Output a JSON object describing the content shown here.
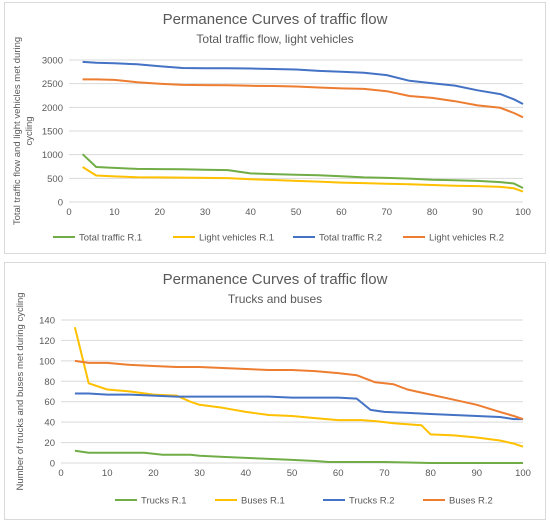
{
  "chart_data": [
    {
      "type": "line",
      "title": "Permanence Curves of traffic flow",
      "subtitle": "Total traffic flow, light vehicles",
      "xlabel": "",
      "ylabel_lines": [
        "Total traffic flow and light vehicles met during",
        "cycling"
      ],
      "xlim": [
        0,
        100
      ],
      "ylim": [
        0,
        3000
      ],
      "x_ticks": [
        0,
        10,
        20,
        30,
        40,
        50,
        60,
        70,
        80,
        90,
        100
      ],
      "y_ticks": [
        0,
        500,
        1000,
        1500,
        2000,
        2500,
        3000
      ],
      "grid": true,
      "legend_position": "bottom",
      "series": [
        {
          "name": "Total traffic R.1",
          "color": "#70ad47",
          "points": [
            [
              3,
              1010
            ],
            [
              6,
              740
            ],
            [
              10,
              720
            ],
            [
              15,
              700
            ],
            [
              20,
              695
            ],
            [
              25,
              690
            ],
            [
              30,
              680
            ],
            [
              35,
              675
            ],
            [
              40,
              605
            ],
            [
              45,
              590
            ],
            [
              50,
              575
            ],
            [
              55,
              565
            ],
            [
              60,
              545
            ],
            [
              65,
              520
            ],
            [
              70,
              510
            ],
            [
              75,
              495
            ],
            [
              80,
              470
            ],
            [
              85,
              460
            ],
            [
              90,
              445
            ],
            [
              95,
              420
            ],
            [
              98,
              390
            ],
            [
              100,
              295
            ]
          ]
        },
        {
          "name": "Light vehicles R.1",
          "color": "#ffc000",
          "points": [
            [
              3,
              740
            ],
            [
              6,
              560
            ],
            [
              10,
              540
            ],
            [
              15,
              525
            ],
            [
              20,
              520
            ],
            [
              25,
              515
            ],
            [
              30,
              510
            ],
            [
              35,
              505
            ],
            [
              40,
              480
            ],
            [
              45,
              465
            ],
            [
              50,
              445
            ],
            [
              55,
              430
            ],
            [
              60,
              410
            ],
            [
              65,
              400
            ],
            [
              70,
              385
            ],
            [
              75,
              375
            ],
            [
              80,
              360
            ],
            [
              85,
              345
            ],
            [
              90,
              335
            ],
            [
              95,
              320
            ],
            [
              98,
              290
            ],
            [
              100,
              220
            ]
          ]
        },
        {
          "name": "Total traffic R.2",
          "color": "#4472c4",
          "points": [
            [
              3,
              2960
            ],
            [
              6,
              2940
            ],
            [
              10,
              2930
            ],
            [
              15,
              2910
            ],
            [
              20,
              2870
            ],
            [
              25,
              2830
            ],
            [
              30,
              2825
            ],
            [
              35,
              2825
            ],
            [
              40,
              2820
            ],
            [
              45,
              2810
            ],
            [
              50,
              2800
            ],
            [
              55,
              2770
            ],
            [
              60,
              2750
            ],
            [
              65,
              2730
            ],
            [
              70,
              2680
            ],
            [
              75,
              2560
            ],
            [
              80,
              2510
            ],
            [
              85,
              2460
            ],
            [
              90,
              2360
            ],
            [
              95,
              2280
            ],
            [
              98,
              2170
            ],
            [
              100,
              2070
            ]
          ]
        },
        {
          "name": "Light vehicles R.2",
          "color": "#ed7d31",
          "points": [
            [
              3,
              2590
            ],
            [
              6,
              2590
            ],
            [
              10,
              2580
            ],
            [
              15,
              2530
            ],
            [
              20,
              2500
            ],
            [
              25,
              2475
            ],
            [
              30,
              2470
            ],
            [
              35,
              2465
            ],
            [
              40,
              2455
            ],
            [
              45,
              2450
            ],
            [
              50,
              2440
            ],
            [
              55,
              2420
            ],
            [
              60,
              2400
            ],
            [
              65,
              2390
            ],
            [
              70,
              2340
            ],
            [
              75,
              2240
            ],
            [
              80,
              2200
            ],
            [
              85,
              2130
            ],
            [
              90,
              2040
            ],
            [
              95,
              1990
            ],
            [
              98,
              1880
            ],
            [
              100,
              1790
            ]
          ]
        }
      ]
    },
    {
      "type": "line",
      "title": "Permanence Curves of traffic flow",
      "subtitle": "Trucks and buses",
      "xlabel": "",
      "ylabel_lines": [
        "Number of trucks and buses met during cycling"
      ],
      "xlim": [
        0,
        100
      ],
      "ylim": [
        0,
        140
      ],
      "x_ticks": [
        0,
        10,
        20,
        30,
        40,
        50,
        60,
        70,
        80,
        90,
        100
      ],
      "y_ticks": [
        0,
        20,
        40,
        60,
        80,
        100,
        120,
        140
      ],
      "grid": true,
      "legend_position": "bottom",
      "series": [
        {
          "name": "Trucks R.1",
          "color": "#70ad47",
          "points": [
            [
              3,
              12
            ],
            [
              6,
              10
            ],
            [
              10,
              10
            ],
            [
              15,
              10
            ],
            [
              18,
              10
            ],
            [
              22,
              8
            ],
            [
              25,
              8
            ],
            [
              28,
              8
            ],
            [
              30,
              7
            ],
            [
              35,
              6
            ],
            [
              40,
              5
            ],
            [
              45,
              4
            ],
            [
              50,
              3
            ],
            [
              55,
              2
            ],
            [
              58,
              1
            ],
            [
              62,
              1
            ],
            [
              65,
              1
            ],
            [
              70,
              1
            ],
            [
              75,
              0.5
            ],
            [
              80,
              0
            ],
            [
              85,
              0
            ],
            [
              90,
              0
            ],
            [
              95,
              0
            ],
            [
              100,
              0
            ]
          ]
        },
        {
          "name": "Buses R.1",
          "color": "#ffc000",
          "points": [
            [
              3,
              133
            ],
            [
              6,
              78
            ],
            [
              10,
              72
            ],
            [
              15,
              70
            ],
            [
              20,
              67
            ],
            [
              25,
              66
            ],
            [
              28,
              60
            ],
            [
              30,
              57
            ],
            [
              35,
              54
            ],
            [
              40,
              50
            ],
            [
              45,
              47
            ],
            [
              50,
              46
            ],
            [
              55,
              44
            ],
            [
              60,
              42
            ],
            [
              65,
              42
            ],
            [
              68,
              41
            ],
            [
              72,
              39
            ],
            [
              75,
              38
            ],
            [
              78,
              37
            ],
            [
              80,
              28
            ],
            [
              85,
              27
            ],
            [
              90,
              25
            ],
            [
              95,
              22
            ],
            [
              98,
              19
            ],
            [
              100,
              16
            ]
          ]
        },
        {
          "name": "Trucks R.2",
          "color": "#4472c4",
          "points": [
            [
              3,
              68
            ],
            [
              6,
              68
            ],
            [
              10,
              67
            ],
            [
              15,
              67
            ],
            [
              20,
              66
            ],
            [
              25,
              65
            ],
            [
              30,
              65
            ],
            [
              35,
              65
            ],
            [
              40,
              65
            ],
            [
              45,
              65
            ],
            [
              50,
              64
            ],
            [
              55,
              64
            ],
            [
              60,
              64
            ],
            [
              64,
              63
            ],
            [
              67,
              52
            ],
            [
              70,
              50
            ],
            [
              75,
              49
            ],
            [
              80,
              48
            ],
            [
              85,
              47
            ],
            [
              90,
              46
            ],
            [
              95,
              45
            ],
            [
              98,
              43
            ],
            [
              100,
              43
            ]
          ]
        },
        {
          "name": "Buses R.2",
          "color": "#ed7d31",
          "points": [
            [
              3,
              100
            ],
            [
              6,
              98
            ],
            [
              10,
              98
            ],
            [
              15,
              96
            ],
            [
              20,
              95
            ],
            [
              25,
              94
            ],
            [
              30,
              94
            ],
            [
              35,
              93
            ],
            [
              40,
              92
            ],
            [
              45,
              91
            ],
            [
              50,
              91
            ],
            [
              55,
              90
            ],
            [
              60,
              88
            ],
            [
              64,
              86
            ],
            [
              68,
              79
            ],
            [
              72,
              77
            ],
            [
              75,
              72
            ],
            [
              80,
              67
            ],
            [
              85,
              62
            ],
            [
              90,
              57
            ],
            [
              95,
              50
            ],
            [
              98,
              46
            ],
            [
              100,
              43
            ]
          ]
        }
      ]
    }
  ]
}
